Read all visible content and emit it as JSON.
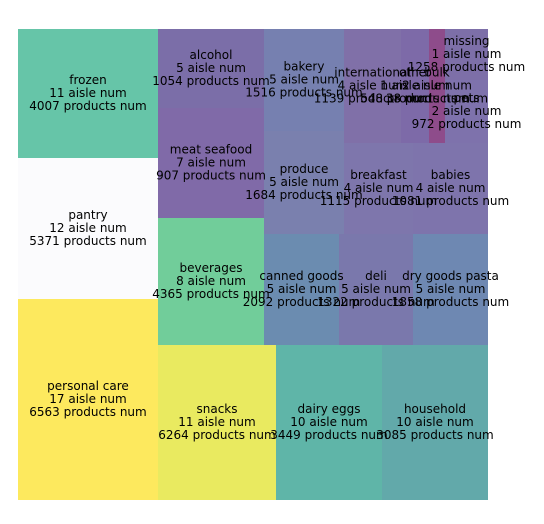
{
  "chart_data": {
    "type": "treemap",
    "categories": [
      "frozen",
      "pantry",
      "personal care",
      "alcohol",
      "meat seafood",
      "beverages",
      "snacks",
      "bakery",
      "produce",
      "international",
      "other",
      "bulk",
      "missing",
      "pets",
      "breakfast",
      "babies",
      "canned goods",
      "deli",
      "dry goods pasta",
      "dairy eggs",
      "household"
    ],
    "aisle_labels": [
      "11 aisle num",
      "12 aisle num",
      "17 aisle num",
      "5 aisle num",
      "7 aisle num",
      "8 aisle num",
      "11 aisle num",
      "5 aisle num",
      "5 aisle num",
      "4 aisle num",
      "1 aisle num",
      "2 aisle num",
      "1 aisle num",
      "2 aisle num",
      "4 aisle num",
      "4 aisle num",
      "5 aisle num",
      "5 aisle num",
      "5 aisle num",
      "10 aisle num",
      "10 aisle num"
    ],
    "values": [
      4007,
      5371,
      6563,
      1054,
      907,
      4365,
      6264,
      1516,
      1684,
      1139,
      548,
      38,
      1258,
      972,
      1115,
      1081,
      2092,
      1322,
      1858,
      3449,
      3085
    ],
    "value_labels": [
      "4007 products num",
      "5371 products num",
      "6563 products num",
      "1054 products num",
      "907 products num",
      "4365 products num",
      "6264 products num",
      "1516 products num",
      "1684 products num",
      "1139 products num",
      "548 products num",
      "38 products num",
      "1258 products num",
      "972 products num",
      "1115 products num",
      "1081 products num",
      "2092 products num",
      "1322 products num",
      "1858 products num",
      "3449 products num",
      "3085 products num"
    ],
    "colors": [
      "#66c5a8",
      "#fbfbfd",
      "#fde95e",
      "#7b6ea8",
      "#806aa8",
      "#71cd9a",
      "#e9ea60",
      "#7680b0",
      "#7a80ae",
      "#8070a8",
      "#7d6aa8",
      "#8e4c8b",
      "#7d6fa8",
      "#7e72ac",
      "#7e76ac",
      "#7e74ac",
      "#6b8cb0",
      "#7a78ac",
      "#6e88b2",
      "#5fb5a8",
      "#62a9aa"
    ]
  }
}
